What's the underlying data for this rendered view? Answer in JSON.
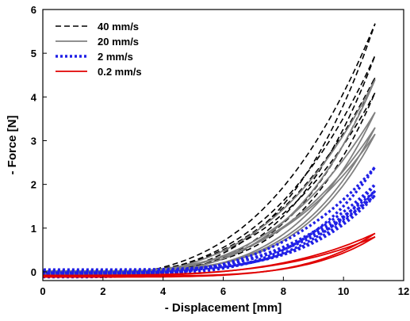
{
  "chart_data": {
    "type": "line",
    "xlabel": "- Displacement [mm]",
    "ylabel": "- Force [N]",
    "xlim": [
      0,
      12
    ],
    "ylim": [
      -0.2,
      6
    ],
    "xticks": [
      0,
      2,
      4,
      6,
      8,
      10,
      12
    ],
    "yticks": [
      0,
      1,
      2,
      3,
      4,
      5,
      6
    ],
    "grid": false,
    "legend_position": "top-left",
    "series": [
      {
        "name": "40 mm/s",
        "color": "#000000",
        "dash": "dashed",
        "loops": [
          {
            "peak": 5.68,
            "start": -0.12,
            "ret": -0.12,
            "p": 3.2,
            "q": 2.5
          },
          {
            "peak": 4.95,
            "start": -0.12,
            "ret": -0.1,
            "p": 3.3,
            "q": 2.6
          },
          {
            "peak": 4.45,
            "start": -0.1,
            "ret": -0.05,
            "p": 3.3,
            "q": 2.7
          },
          {
            "peak": 4.1,
            "start": -0.05,
            "ret": 0.0,
            "p": 3.4,
            "q": 2.8
          }
        ]
      },
      {
        "name": "20 mm/s",
        "color": "#808080",
        "dash": "solid",
        "loops": [
          {
            "peak": 4.4,
            "start": -0.12,
            "ret": -0.08,
            "p": 3.3,
            "q": 2.6
          },
          {
            "peak": 3.65,
            "start": -0.1,
            "ret": -0.05,
            "p": 3.4,
            "q": 2.8
          },
          {
            "peak": 3.3,
            "start": -0.05,
            "ret": 0.0,
            "p": 3.5,
            "q": 2.9
          },
          {
            "peak": 3.15,
            "start": -0.02,
            "ret": 0.02,
            "p": 3.5,
            "q": 3.0
          }
        ]
      },
      {
        "name": "2 mm/s",
        "color": "#1f1fe6",
        "dash": "dotted",
        "loops": [
          {
            "peak": 2.4,
            "start": -0.12,
            "ret": -0.08,
            "p": 3.5,
            "q": 2.9
          },
          {
            "peak": 2.0,
            "start": -0.08,
            "ret": -0.02,
            "p": 3.6,
            "q": 3.0
          },
          {
            "peak": 1.85,
            "start": -0.05,
            "ret": 0.02,
            "p": 3.6,
            "q": 3.1
          },
          {
            "peak": 1.75,
            "start": -0.02,
            "ret": 0.05,
            "p": 3.7,
            "q": 3.2
          }
        ]
      },
      {
        "name": "0.2 mm/s",
        "color": "#e00000",
        "dash": "solid",
        "loops": [
          {
            "peak": 0.88,
            "start": -0.1,
            "ret": -0.12,
            "p": 3.6,
            "q": 3.3
          },
          {
            "peak": 0.8,
            "start": -0.08,
            "ret": -0.1,
            "p": 3.7,
            "q": 3.4
          }
        ]
      }
    ],
    "x_max": 11.05
  }
}
